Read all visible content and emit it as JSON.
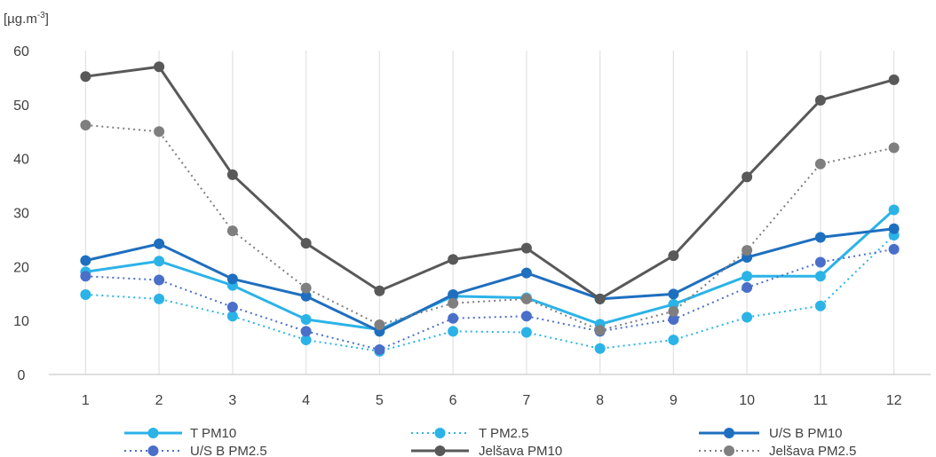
{
  "chart_data": {
    "type": "line",
    "title": "",
    "xlabel": "",
    "ylabel": "",
    "unit_label": "[µg.m",
    "unit_sup": "-3",
    "unit_close": "]",
    "ylim": [
      0,
      60
    ],
    "yticks": [
      0,
      10,
      20,
      30,
      40,
      50,
      60
    ],
    "x": [
      1,
      2,
      3,
      4,
      5,
      6,
      7,
      8,
      9,
      10,
      11,
      12
    ],
    "grid": "vertical",
    "legend_position": "bottom",
    "series": [
      {
        "name": "T PM10",
        "color": "#2BB3E8",
        "dashed": false,
        "values": [
          19,
          21,
          16.5,
          10.2,
          8.3,
          14.5,
          14.2,
          9.3,
          13,
          18.2,
          18.2,
          30.5
        ]
      },
      {
        "name": "T PM2.5",
        "color": "#2BB3E8",
        "dashed": true,
        "values": [
          14.8,
          14,
          10.8,
          6.4,
          4.3,
          8,
          7.8,
          4.8,
          6.4,
          10.6,
          12.7,
          25.8
        ]
      },
      {
        "name": "U/S B PM10",
        "color": "#1F6FBF",
        "dashed": false,
        "values": [
          21.1,
          24.2,
          17.7,
          14.5,
          8,
          14.8,
          18.8,
          14,
          14.9,
          21.7,
          25.4,
          27
        ]
      },
      {
        "name": "U/S B PM2.5",
        "color": "#4A6FC9",
        "dashed": true,
        "values": [
          18.2,
          17.5,
          12.5,
          8,
          4.6,
          10.4,
          10.8,
          8,
          10.2,
          16.1,
          20.8,
          23.2
        ]
      },
      {
        "name": "Jelšava PM10",
        "color": "#595959",
        "dashed": false,
        "values": [
          55.2,
          57,
          37,
          24.3,
          15.5,
          21.3,
          23.4,
          14,
          22,
          36.6,
          50.8,
          54.6
        ]
      },
      {
        "name": "Jelšava PM2.5",
        "color": "#7F7F7F",
        "dashed": true,
        "values": [
          46.2,
          45,
          26.6,
          16,
          9.2,
          13.2,
          14,
          8.2,
          11.7,
          23,
          39,
          42
        ]
      }
    ]
  }
}
